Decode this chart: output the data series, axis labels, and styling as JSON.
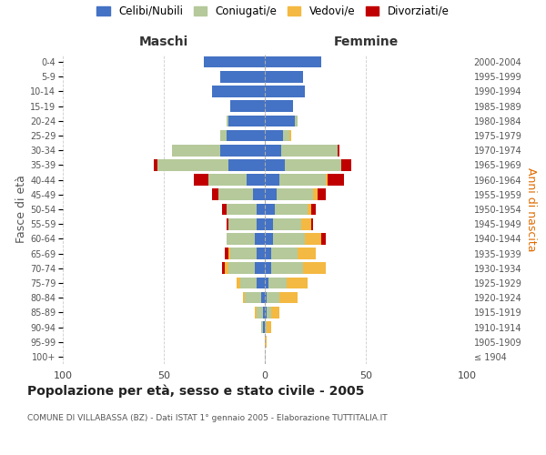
{
  "age_groups": [
    "100+",
    "95-99",
    "90-94",
    "85-89",
    "80-84",
    "75-79",
    "70-74",
    "65-69",
    "60-64",
    "55-59",
    "50-54",
    "45-49",
    "40-44",
    "35-39",
    "30-34",
    "25-29",
    "20-24",
    "15-19",
    "10-14",
    "5-9",
    "0-4"
  ],
  "birth_years": [
    "≤ 1904",
    "1905-1909",
    "1910-1914",
    "1915-1919",
    "1920-1924",
    "1925-1929",
    "1930-1934",
    "1935-1939",
    "1940-1944",
    "1945-1949",
    "1950-1954",
    "1955-1959",
    "1960-1964",
    "1965-1969",
    "1970-1974",
    "1975-1979",
    "1980-1984",
    "1985-1989",
    "1990-1994",
    "1995-1999",
    "2000-2004"
  ],
  "colors": {
    "celibe": "#4472c4",
    "coniugato": "#b5c99a",
    "vedovo": "#f4b942",
    "divorziato": "#c00000"
  },
  "maschi": {
    "celibe": [
      0,
      0,
      1,
      1,
      2,
      4,
      5,
      4,
      5,
      4,
      4,
      6,
      9,
      18,
      22,
      19,
      18,
      17,
      26,
      22,
      30
    ],
    "coniugato": [
      0,
      0,
      1,
      3,
      8,
      8,
      13,
      13,
      14,
      14,
      15,
      17,
      19,
      35,
      24,
      3,
      1,
      0,
      0,
      0,
      0
    ],
    "vedovo": [
      0,
      0,
      0,
      1,
      1,
      2,
      2,
      1,
      0,
      0,
      0,
      0,
      0,
      0,
      0,
      0,
      0,
      0,
      0,
      0,
      0
    ],
    "divorziato": [
      0,
      0,
      0,
      0,
      0,
      0,
      1,
      2,
      0,
      1,
      2,
      3,
      7,
      2,
      0,
      0,
      0,
      0,
      0,
      0,
      0
    ]
  },
  "femmine": {
    "nubile": [
      0,
      0,
      0,
      1,
      1,
      2,
      3,
      3,
      4,
      4,
      5,
      6,
      7,
      10,
      8,
      9,
      15,
      14,
      20,
      19,
      28
    ],
    "coniugata": [
      0,
      0,
      1,
      2,
      6,
      9,
      16,
      13,
      16,
      14,
      16,
      18,
      23,
      28,
      28,
      3,
      1,
      0,
      0,
      0,
      0
    ],
    "vedova": [
      0,
      1,
      2,
      4,
      9,
      10,
      11,
      9,
      8,
      5,
      2,
      2,
      1,
      0,
      0,
      1,
      0,
      0,
      0,
      0,
      0
    ],
    "divorziata": [
      0,
      0,
      0,
      0,
      0,
      0,
      0,
      0,
      2,
      1,
      2,
      4,
      8,
      5,
      1,
      0,
      0,
      0,
      0,
      0,
      0
    ]
  },
  "xlim": 100,
  "title": "Popolazione per età, sesso e stato civile - 2005",
  "subtitle": "COMUNE DI VILLABASSA (BZ) - Dati ISTAT 1° gennaio 2005 - Elaborazione TUTTITALIA.IT",
  "ylabel_left": "Fasce di età",
  "ylabel_right": "Anni di nascita",
  "xlabel_left": "Maschi",
  "xlabel_right": "Femmine",
  "legend_labels": [
    "Celibi/Nubili",
    "Coniugati/e",
    "Vedovi/e",
    "Divorziati/e"
  ],
  "background_color": "#ffffff",
  "grid_color": "#cccccc"
}
